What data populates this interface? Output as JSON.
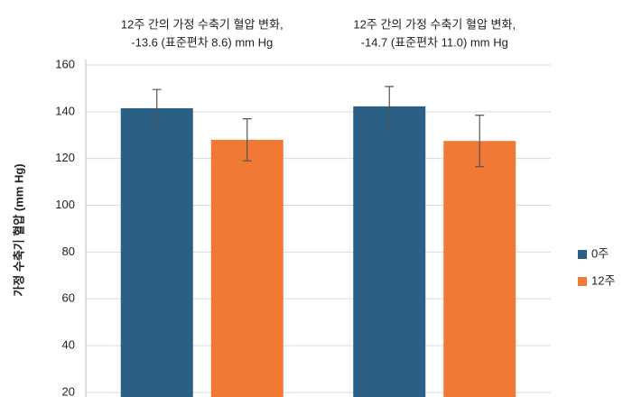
{
  "chart_data": {
    "type": "bar",
    "annotations": [
      [
        "12주 간의 가정 수축기 혈압 변화,",
        "-13.6 (표준편차 8.6) mm Hg"
      ],
      [
        "12주 간의 가정 수축기 혈압 변화,",
        "-14.7 (표준편차 11.0) mm Hg"
      ]
    ],
    "y_label": "가정 수축기 혈압 (mm Hg)",
    "categories": [
      null,
      null
    ],
    "series": [
      {
        "name": "0주",
        "color": "#2c5f86",
        "values": [
          141.5,
          142.3
        ],
        "errors": [
          8,
          8.5
        ]
      },
      {
        "name": "12주",
        "color": "#f07a35",
        "values": [
          128,
          127.5
        ],
        "errors": [
          9,
          11
        ]
      }
    ],
    "ylim": [
      18,
      160
    ],
    "yticks": [
      20,
      40,
      60,
      80,
      100,
      120,
      140,
      160
    ],
    "grid": true,
    "legend": "right"
  }
}
